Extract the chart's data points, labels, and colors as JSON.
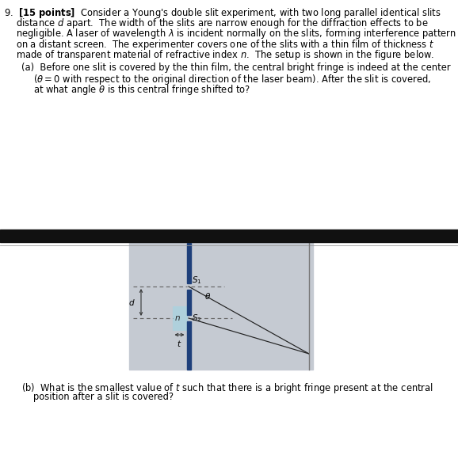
{
  "bg_color": "#ffffff",
  "fig_width": 5.78,
  "fig_height": 5.85,
  "dark_bar_color": "#1e3f7a",
  "thin_film_color": "#afd0dc",
  "thin_film_border": "#7aafc0",
  "diagram_bg": "#c5cad2",
  "separator_color": "#111111",
  "text_color": "#000000",
  "dashed_color": "#666666",
  "line_color": "#333333",
  "screen_color": "#777777"
}
